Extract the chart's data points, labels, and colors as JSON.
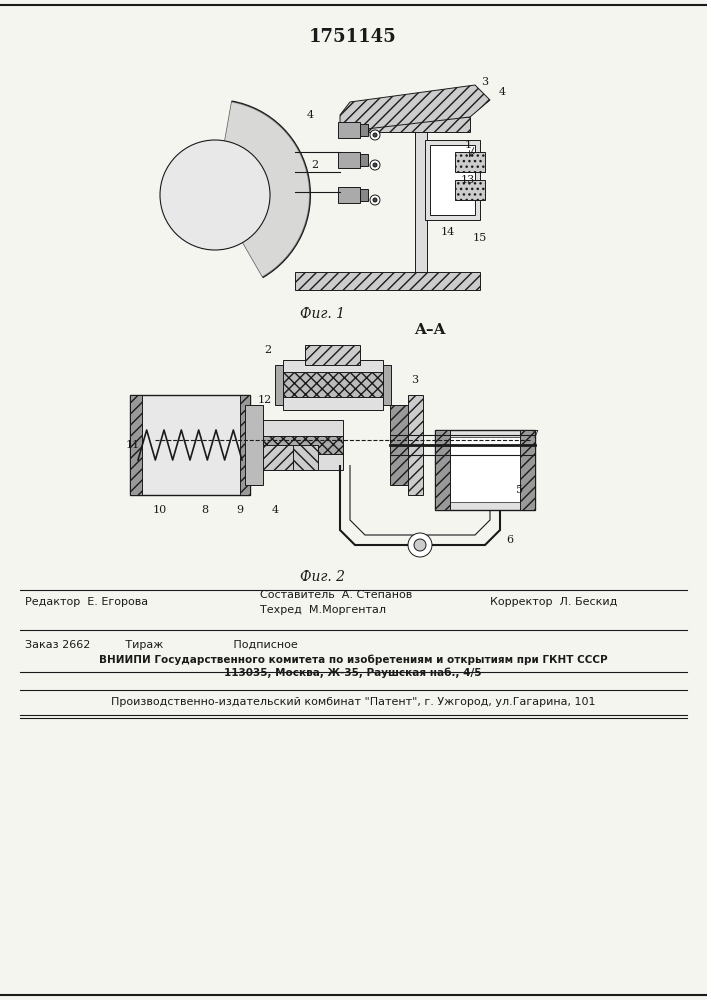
{
  "patent_number": "1751145",
  "bg_color": "#f5f5f0",
  "line_color": "#1a1a1a",
  "fig1_caption": "Фиг. 1",
  "fig2_caption": "Фиг. 2",
  "section_label": "A–A",
  "editor_line": "Редактор  Е. Егорова",
  "composer_line": "Составитель  А. Степанов",
  "techred_line": "Техред  М.Моргентал",
  "corrector_line": "Корректор  Л. Бескид",
  "order_line": "Заказ 2662          Тираж                    Подписное",
  "vniiipi_line": "ВНИИПИ Государственного комитета по изобретениям и открытиям при ГКНТ СССР",
  "address_line": "113035, Москва, Ж-35, Раушская наб., 4/5",
  "publisher_line": "Производственно-издательский комбинат \"Патент\", г. Ужгород, ул.Гагарина, 101"
}
